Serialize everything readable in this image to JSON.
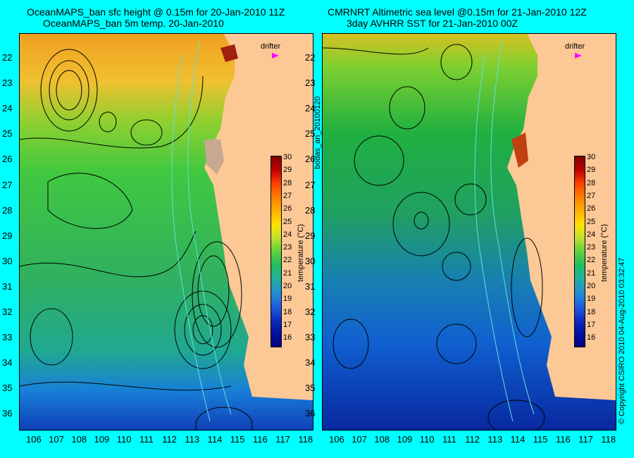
{
  "left_panel": {
    "title_line1": "OceanMAPS_ban sfc height @ 0.15m for 20-Jan-2010 11Z",
    "title_line2": "OceanMAPS_ban 5m temp. 20-Jan-2010",
    "drifter_label": "drifter"
  },
  "right_panel": {
    "title_line1": "CMRNRT Altimetric sea level  @0.15m  for 21-Jan-2010 12Z",
    "title_line2": "3day AVHRR SST for 21-Jan-2010 00Z",
    "drifter_label": "drifter"
  },
  "axes": {
    "lat_ticks": [
      "22",
      "23",
      "24",
      "25",
      "26",
      "27",
      "28",
      "29",
      "30",
      "31",
      "32",
      "33",
      "34",
      "35",
      "36"
    ],
    "lon_ticks": [
      "106",
      "107",
      "108",
      "109",
      "110",
      "111",
      "112",
      "113",
      "114",
      "115",
      "116",
      "117",
      "118"
    ]
  },
  "colorbar": {
    "label": "temperature (°C)",
    "ticks": [
      "30",
      "29",
      "28",
      "27",
      "26",
      "25",
      "24",
      "23",
      "22",
      "21",
      "20",
      "19",
      "18",
      "17",
      "16"
    ],
    "range": [
      16,
      30
    ]
  },
  "side_text": {
    "analysis_id": "bodas_an_20100120",
    "copyright": "© Copyright CSIRO 2010  04-Aug-2010 03:32:47"
  },
  "colors": {
    "background": "#00ffff",
    "land": "#fcc896",
    "drifter": "#ff00ff"
  }
}
